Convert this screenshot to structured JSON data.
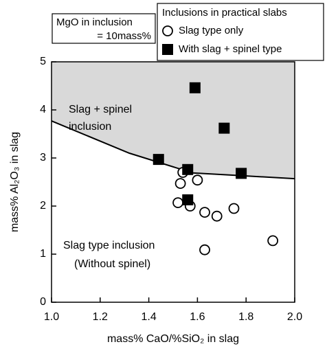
{
  "chart_data": {
    "type": "scatter",
    "xlabel": "mass% CaO/%SiO₂ in slag",
    "ylabel": "mass% Al₂O₃ in slag",
    "xlim": [
      1,
      2
    ],
    "ylim": [
      0,
      5
    ],
    "xticks": [
      {
        "value": 1,
        "label": "1.0"
      },
      1.2,
      1.4,
      1.6,
      1.8,
      {
        "value": 2,
        "label": "2.0"
      }
    ],
    "yticks": [
      0,
      1,
      2,
      3,
      4,
      5
    ],
    "legend_title": "Inclusions in practical slabs",
    "note": [
      "MgO in inclusion",
      "= 10mass%"
    ],
    "annotations": [
      "Slag + spinel",
      "inclusion",
      "Slag type inclusion",
      "(Without spinel)"
    ],
    "series": [
      {
        "name": "Slag type only",
        "marker": "circle",
        "color": "#000000",
        "x": [
          1.54,
          1.53,
          1.6,
          1.52,
          1.57,
          1.63,
          1.68,
          1.75,
          1.63,
          1.91
        ],
        "values": [
          2.7,
          2.47,
          2.54,
          2.07,
          2.0,
          1.87,
          1.79,
          1.95,
          1.09,
          1.28
        ]
      },
      {
        "name": "With slag + spinel type",
        "marker": "square",
        "color": "#000000",
        "x": [
          1.59,
          1.71,
          1.44,
          1.56,
          1.78,
          1.56
        ],
        "values": [
          4.46,
          3.62,
          2.97,
          2.76,
          2.68,
          2.13
        ]
      }
    ],
    "boundary": {
      "color": "#000000",
      "shade": "#d9d9d9",
      "x": [
        1.0,
        1.32,
        1.58,
        2.0
      ],
      "values": [
        3.77,
        3.1,
        2.69,
        2.57
      ]
    }
  }
}
